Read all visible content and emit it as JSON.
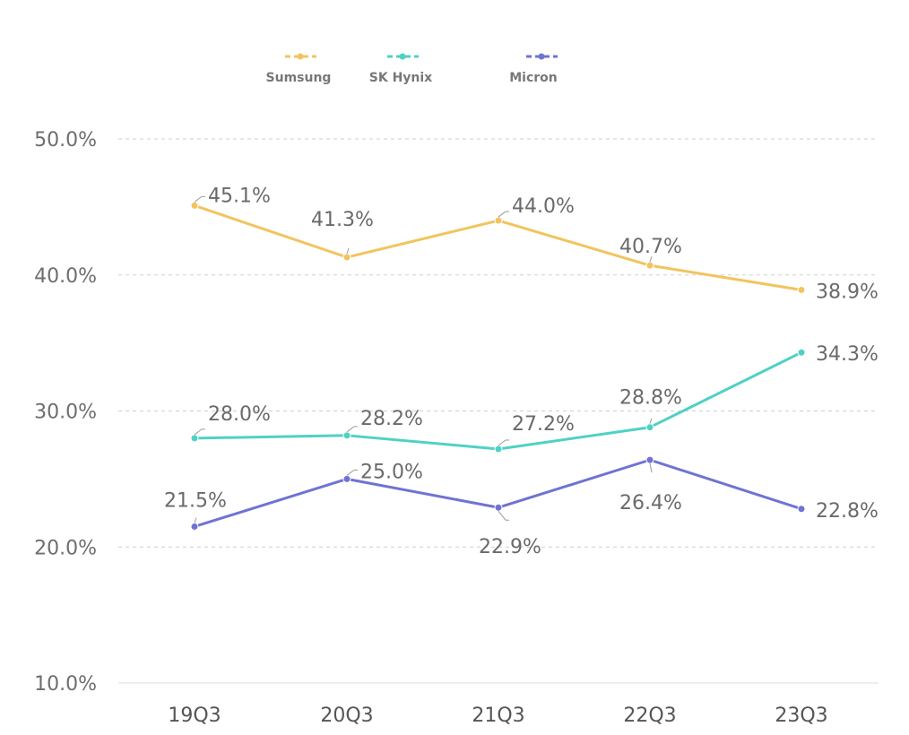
{
  "chart_data": {
    "type": "line",
    "categories": [
      "19Q3",
      "20Q3",
      "21Q3",
      "22Q3",
      "23Q3"
    ],
    "ylim": [
      10,
      50
    ],
    "yticks": [
      "10.0%",
      "20.0%",
      "30.0%",
      "40.0%",
      "50.0%"
    ],
    "grid": true,
    "legend_position": "top-left",
    "series": [
      {
        "name": "Sumsung",
        "color": "#f2c45e",
        "values": [
          45.1,
          41.3,
          44.0,
          40.7,
          38.9
        ],
        "labels": [
          "45.1%",
          "41.3%",
          "44.0%",
          "40.7%",
          "38.9%"
        ]
      },
      {
        "name": "SK Hynix",
        "color": "#4fd1c5",
        "values": [
          28.0,
          28.2,
          27.2,
          28.8,
          34.3
        ],
        "labels": [
          "28.0%",
          "28.2%",
          "27.2%",
          "28.8%",
          "34.3%"
        ]
      },
      {
        "name": "Micron",
        "color": "#6f73d2",
        "values": [
          21.5,
          25.0,
          22.9,
          26.4,
          22.8
        ],
        "labels": [
          "21.5%",
          "25.0%",
          "22.9%",
          "26.4%",
          "22.8%"
        ]
      }
    ]
  }
}
